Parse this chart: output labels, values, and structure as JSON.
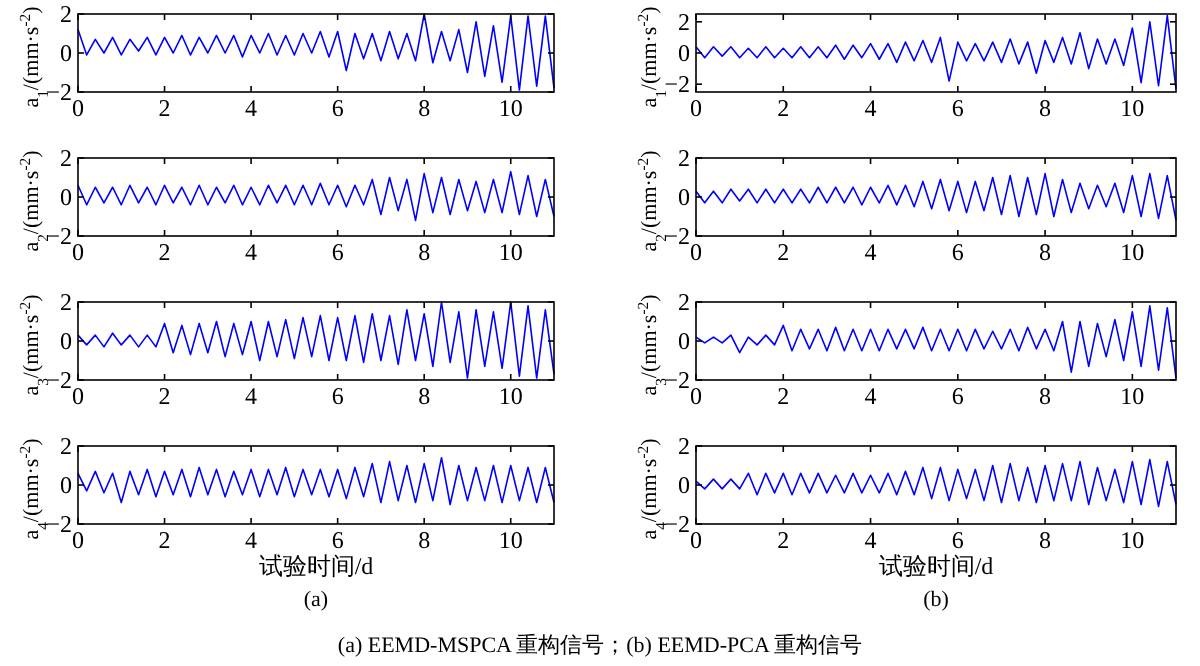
{
  "chart_data": [
    {
      "type": "line",
      "ylabel": "a$_{1}$/(mm·s$^{-2}$)",
      "color": "#0000ff",
      "xlim": [
        0,
        11
      ],
      "ylim": [
        -2,
        2
      ],
      "xticks": [
        0,
        2,
        4,
        6,
        8,
        10
      ],
      "yticks": [
        -2,
        0,
        2
      ],
      "x": [
        0,
        0.2,
        0.4,
        0.6,
        0.8,
        1,
        1.2,
        1.4,
        1.6,
        1.8,
        2,
        2.2,
        2.4,
        2.6,
        2.8,
        3,
        3.2,
        3.4,
        3.6,
        3.8,
        4,
        4.2,
        4.4,
        4.6,
        4.8,
        5,
        5.2,
        5.4,
        5.6,
        5.8,
        6,
        6.2,
        6.4,
        6.6,
        6.8,
        7,
        7.2,
        7.4,
        7.6,
        7.8,
        8,
        8.2,
        8.4,
        8.6,
        8.8,
        9,
        9.2,
        9.4,
        9.6,
        9.8,
        10,
        10.2,
        10.4,
        10.6,
        10.8,
        11
      ],
      "values": [
        1.2,
        -0.1,
        0.7,
        0.0,
        0.8,
        -0.1,
        0.7,
        0.1,
        0.8,
        -0.1,
        0.8,
        0.0,
        0.9,
        -0.1,
        0.8,
        0.0,
        0.9,
        0.0,
        0.9,
        -0.2,
        0.9,
        0.0,
        1.0,
        -0.1,
        0.9,
        -0.1,
        1.0,
        0.0,
        1.1,
        -0.2,
        1.1,
        -0.9,
        1.0,
        -0.3,
        1.0,
        -0.4,
        1.1,
        -0.3,
        1.0,
        -0.4,
        2.0,
        -0.5,
        1.1,
        -0.4,
        1.2,
        -1.0,
        1.6,
        -1.2,
        1.4,
        -1.5,
        1.9,
        -1.9,
        1.9,
        -1.7,
        1.9,
        -1.8
      ]
    },
    {
      "type": "line",
      "ylabel": "a$_{2}$/(mm·s$^{-2}$)",
      "color": "#0000ff",
      "xlim": [
        0,
        11
      ],
      "ylim": [
        -2,
        2
      ],
      "xticks": [
        0,
        2,
        4,
        6,
        8,
        10
      ],
      "yticks": [
        -2,
        0,
        2
      ],
      "x": [
        0,
        0.2,
        0.4,
        0.6,
        0.8,
        1,
        1.2,
        1.4,
        1.6,
        1.8,
        2,
        2.2,
        2.4,
        2.6,
        2.8,
        3,
        3.2,
        3.4,
        3.6,
        3.8,
        4,
        4.2,
        4.4,
        4.6,
        4.8,
        5,
        5.2,
        5.4,
        5.6,
        5.8,
        6,
        6.2,
        6.4,
        6.6,
        6.8,
        7,
        7.2,
        7.4,
        7.6,
        7.8,
        8,
        8.2,
        8.4,
        8.6,
        8.8,
        9,
        9.2,
        9.4,
        9.6,
        9.8,
        10,
        10.2,
        10.4,
        10.6,
        10.8,
        11
      ],
      "values": [
        0.6,
        -0.4,
        0.5,
        -0.3,
        0.5,
        -0.4,
        0.6,
        -0.3,
        0.5,
        -0.4,
        0.6,
        -0.3,
        0.5,
        -0.4,
        0.6,
        -0.4,
        0.5,
        -0.3,
        0.6,
        -0.4,
        0.5,
        -0.4,
        0.6,
        -0.3,
        0.6,
        -0.4,
        0.6,
        -0.4,
        0.7,
        -0.4,
        0.6,
        -0.5,
        0.6,
        -0.4,
        0.9,
        -0.9,
        1.0,
        -0.7,
        0.9,
        -1.2,
        1.2,
        -0.8,
        1.0,
        -0.9,
        0.9,
        -0.7,
        0.8,
        -0.8,
        0.9,
        -0.8,
        1.3,
        -0.9,
        1.1,
        -1.0,
        0.9,
        -1.0
      ]
    },
    {
      "type": "line",
      "ylabel": "a$_{3}$/(mm·s$^{-2}$)",
      "color": "#0000ff",
      "xlim": [
        0,
        11
      ],
      "ylim": [
        -2,
        2
      ],
      "xticks": [
        0,
        2,
        4,
        6,
        8,
        10
      ],
      "yticks": [
        -2,
        0,
        2
      ],
      "x": [
        0,
        0.2,
        0.4,
        0.6,
        0.8,
        1,
        1.2,
        1.4,
        1.6,
        1.8,
        2,
        2.2,
        2.4,
        2.6,
        2.8,
        3,
        3.2,
        3.4,
        3.6,
        3.8,
        4,
        4.2,
        4.4,
        4.6,
        4.8,
        5,
        5.2,
        5.4,
        5.6,
        5.8,
        6,
        6.2,
        6.4,
        6.6,
        6.8,
        7,
        7.2,
        7.4,
        7.6,
        7.8,
        8,
        8.2,
        8.4,
        8.6,
        8.8,
        9,
        9.2,
        9.4,
        9.6,
        9.8,
        10,
        10.2,
        10.4,
        10.6,
        10.8,
        11
      ],
      "values": [
        0.3,
        -0.2,
        0.3,
        -0.3,
        0.4,
        -0.2,
        0.3,
        -0.3,
        0.3,
        -0.3,
        0.9,
        -0.6,
        0.8,
        -0.7,
        0.9,
        -0.6,
        1.0,
        -0.8,
        0.9,
        -0.7,
        1.0,
        -1.0,
        1.0,
        -0.8,
        1.1,
        -0.9,
        1.2,
        -0.8,
        1.3,
        -1.0,
        1.2,
        -1.0,
        1.3,
        -1.1,
        1.4,
        -1.0,
        1.3,
        -1.2,
        1.6,
        -1.0,
        1.4,
        -1.3,
        2.0,
        -1.1,
        1.5,
        -1.9,
        1.6,
        -1.3,
        1.5,
        -1.4,
        2.0,
        -1.8,
        1.8,
        -1.9,
        1.6,
        -1.7
      ]
    },
    {
      "type": "line",
      "ylabel": "a$_{4}$/(mm·s$^{-2}$)",
      "xlabel": "试验时间/d",
      "annotations": [
        "(a)"
      ],
      "color": "#0000ff",
      "xlim": [
        0,
        11
      ],
      "ylim": [
        -2,
        2
      ],
      "xticks": [
        0,
        2,
        4,
        6,
        8,
        10
      ],
      "yticks": [
        -2,
        0,
        2
      ],
      "x": [
        0,
        0.2,
        0.4,
        0.6,
        0.8,
        1,
        1.2,
        1.4,
        1.6,
        1.8,
        2,
        2.2,
        2.4,
        2.6,
        2.8,
        3,
        3.2,
        3.4,
        3.6,
        3.8,
        4,
        4.2,
        4.4,
        4.6,
        4.8,
        5,
        5.2,
        5.4,
        5.6,
        5.8,
        6,
        6.2,
        6.4,
        6.6,
        6.8,
        7,
        7.2,
        7.4,
        7.6,
        7.8,
        8,
        8.2,
        8.4,
        8.6,
        8.8,
        9,
        9.2,
        9.4,
        9.6,
        9.8,
        10,
        10.2,
        10.4,
        10.6,
        10.8,
        11
      ],
      "values": [
        0.6,
        -0.3,
        0.7,
        -0.4,
        0.6,
        -0.9,
        0.7,
        -0.5,
        0.8,
        -0.6,
        0.7,
        -0.5,
        0.8,
        -0.6,
        0.9,
        -0.5,
        0.8,
        -0.6,
        0.7,
        -0.5,
        0.8,
        -0.6,
        0.8,
        -0.5,
        0.9,
        -0.6,
        0.8,
        -0.5,
        0.8,
        -0.6,
        0.8,
        -0.7,
        0.9,
        -0.6,
        1.1,
        -0.9,
        1.2,
        -0.8,
        1.0,
        -0.9,
        1.1,
        -0.8,
        1.4,
        -1.0,
        1.0,
        -0.8,
        0.9,
        -0.8,
        1.0,
        -0.9,
        1.0,
        -0.8,
        0.9,
        -0.9,
        0.9,
        -0.9
      ]
    },
    {
      "type": "line",
      "ylabel": "a$_{1}$/(mm·s$^{-2}$)",
      "color": "#0000ff",
      "xlim": [
        0,
        11
      ],
      "ylim": [
        -2.5,
        2.5
      ],
      "xticks": [
        0,
        2,
        4,
        6,
        8,
        10
      ],
      "yticks": [
        -2,
        0,
        2
      ],
      "x": [
        0,
        0.2,
        0.4,
        0.6,
        0.8,
        1,
        1.2,
        1.4,
        1.6,
        1.8,
        2,
        2.2,
        2.4,
        2.6,
        2.8,
        3,
        3.2,
        3.4,
        3.6,
        3.8,
        4,
        4.2,
        4.4,
        4.6,
        4.8,
        5,
        5.2,
        5.4,
        5.6,
        5.8,
        6,
        6.2,
        6.4,
        6.6,
        6.8,
        7,
        7.2,
        7.4,
        7.6,
        7.8,
        8,
        8.2,
        8.4,
        8.6,
        8.8,
        9,
        9.2,
        9.4,
        9.6,
        9.8,
        10,
        10.2,
        10.4,
        10.6,
        10.8,
        11
      ],
      "values": [
        0.4,
        -0.3,
        0.4,
        -0.2,
        0.4,
        -0.3,
        0.3,
        -0.3,
        0.4,
        -0.3,
        0.3,
        -0.3,
        0.4,
        -0.3,
        0.4,
        -0.3,
        0.5,
        -0.4,
        0.5,
        -0.3,
        0.6,
        -0.4,
        0.6,
        -0.6,
        0.7,
        -0.5,
        0.8,
        -0.6,
        1.0,
        -1.8,
        0.7,
        -0.5,
        0.6,
        -0.5,
        0.7,
        -0.6,
        0.9,
        -0.7,
        0.7,
        -1.3,
        0.8,
        -0.6,
        1.0,
        -0.7,
        1.3,
        -1.0,
        0.9,
        -0.7,
        0.9,
        -0.8,
        1.6,
        -1.9,
        2.0,
        -2.1,
        2.4,
        -2.3
      ]
    },
    {
      "type": "line",
      "ylabel": "a$_{2}$/(mm·s$^{-2}$)",
      "color": "#0000ff",
      "xlim": [
        0,
        11
      ],
      "ylim": [
        -2,
        2
      ],
      "xticks": [
        0,
        2,
        4,
        6,
        8,
        10
      ],
      "yticks": [
        -2,
        0,
        2
      ],
      "x": [
        0,
        0.2,
        0.4,
        0.6,
        0.8,
        1,
        1.2,
        1.4,
        1.6,
        1.8,
        2,
        2.2,
        2.4,
        2.6,
        2.8,
        3,
        3.2,
        3.4,
        3.6,
        3.8,
        4,
        4.2,
        4.4,
        4.6,
        4.8,
        5,
        5.2,
        5.4,
        5.6,
        5.8,
        6,
        6.2,
        6.4,
        6.6,
        6.8,
        7,
        7.2,
        7.4,
        7.6,
        7.8,
        8,
        8.2,
        8.4,
        8.6,
        8.8,
        9,
        9.2,
        9.4,
        9.6,
        9.8,
        10,
        10.2,
        10.4,
        10.6,
        10.8,
        11
      ],
      "values": [
        0.3,
        -0.3,
        0.3,
        -0.3,
        0.4,
        -0.2,
        0.4,
        -0.3,
        0.4,
        -0.3,
        0.4,
        -0.3,
        0.4,
        -0.3,
        0.5,
        -0.3,
        0.5,
        -0.3,
        0.5,
        -0.4,
        0.5,
        -0.3,
        0.6,
        -0.4,
        0.6,
        -0.5,
        0.8,
        -0.6,
        0.9,
        -0.7,
        0.8,
        -0.8,
        0.8,
        -0.7,
        1.0,
        -0.9,
        1.1,
        -1.0,
        1.0,
        -0.9,
        1.2,
        -1.0,
        0.9,
        -0.8,
        0.7,
        -0.6,
        0.6,
        -0.5,
        0.7,
        -0.8,
        1.1,
        -1.0,
        1.2,
        -1.1,
        1.1,
        -1.2
      ]
    },
    {
      "type": "line",
      "ylabel": "a$_{3}$/(mm·s$^{-2}$)",
      "color": "#0000ff",
      "xlim": [
        0,
        11
      ],
      "ylim": [
        -2,
        2
      ],
      "xticks": [
        0,
        2,
        4,
        6,
        8,
        10
      ],
      "yticks": [
        -2,
        0,
        2
      ],
      "x": [
        0,
        0.2,
        0.4,
        0.6,
        0.8,
        1,
        1.2,
        1.4,
        1.6,
        1.8,
        2,
        2.2,
        2.4,
        2.6,
        2.8,
        3,
        3.2,
        3.4,
        3.6,
        3.8,
        4,
        4.2,
        4.4,
        4.6,
        4.8,
        5,
        5.2,
        5.4,
        5.6,
        5.8,
        6,
        6.2,
        6.4,
        6.6,
        6.8,
        7,
        7.2,
        7.4,
        7.6,
        7.8,
        8,
        8.2,
        8.4,
        8.6,
        8.8,
        9,
        9.2,
        9.4,
        9.6,
        9.8,
        10,
        10.2,
        10.4,
        10.6,
        10.8,
        11
      ],
      "values": [
        0.2,
        -0.1,
        0.2,
        -0.1,
        0.3,
        -0.6,
        0.2,
        -0.2,
        0.3,
        -0.2,
        0.8,
        -0.5,
        0.6,
        -0.4,
        0.6,
        -0.5,
        0.7,
        -0.5,
        0.6,
        -0.5,
        0.6,
        -0.5,
        0.6,
        -0.4,
        0.6,
        -0.4,
        0.7,
        -0.5,
        0.6,
        -0.5,
        0.6,
        -0.5,
        0.6,
        -0.4,
        0.5,
        -0.4,
        0.6,
        -0.5,
        0.7,
        -0.4,
        0.6,
        -0.5,
        1.0,
        -1.6,
        1.0,
        -1.3,
        0.9,
        -0.8,
        1.1,
        -1.0,
        1.5,
        -1.3,
        1.8,
        -1.5,
        1.7,
        -1.9
      ]
    },
    {
      "type": "line",
      "ylabel": "a$_{4}$/(mm·s$^{-2}$)",
      "xlabel": "试验时间/d",
      "annotations": [
        "(b)",
        "(a) EEMD-MSPCA 重构信号；(b) EEMD-PCA 重构信号"
      ],
      "color": "#0000ff",
      "xlim": [
        0,
        11
      ],
      "ylim": [
        -2,
        2
      ],
      "xticks": [
        0,
        2,
        4,
        6,
        8,
        10
      ],
      "yticks": [
        -2,
        0,
        2
      ],
      "x": [
        0,
        0.2,
        0.4,
        0.6,
        0.8,
        1,
        1.2,
        1.4,
        1.6,
        1.8,
        2,
        2.2,
        2.4,
        2.6,
        2.8,
        3,
        3.2,
        3.4,
        3.6,
        3.8,
        4,
        4.2,
        4.4,
        4.6,
        4.8,
        5,
        5.2,
        5.4,
        5.6,
        5.8,
        6,
        6.2,
        6.4,
        6.6,
        6.8,
        7,
        7.2,
        7.4,
        7.6,
        7.8,
        8,
        8.2,
        8.4,
        8.6,
        8.8,
        9,
        9.2,
        9.4,
        9.6,
        9.8,
        10,
        10.2,
        10.4,
        10.6,
        10.8,
        11
      ],
      "values": [
        0.2,
        -0.2,
        0.3,
        -0.2,
        0.3,
        -0.2,
        0.6,
        -0.5,
        0.6,
        -0.4,
        0.6,
        -0.5,
        0.6,
        -0.4,
        0.6,
        -0.4,
        0.5,
        -0.4,
        0.6,
        -0.4,
        0.5,
        -0.4,
        0.6,
        -0.5,
        0.7,
        -0.5,
        0.9,
        -0.7,
        0.9,
        -0.8,
        0.8,
        -0.7,
        0.8,
        -0.8,
        1.0,
        -0.9,
        1.1,
        -0.8,
        0.9,
        -0.9,
        1.0,
        -0.8,
        1.1,
        -0.8,
        1.2,
        -1.0,
        0.9,
        -0.8,
        0.8,
        -0.9,
        1.2,
        -1.0,
        1.3,
        -1.1,
        1.2,
        -1.0
      ]
    }
  ]
}
